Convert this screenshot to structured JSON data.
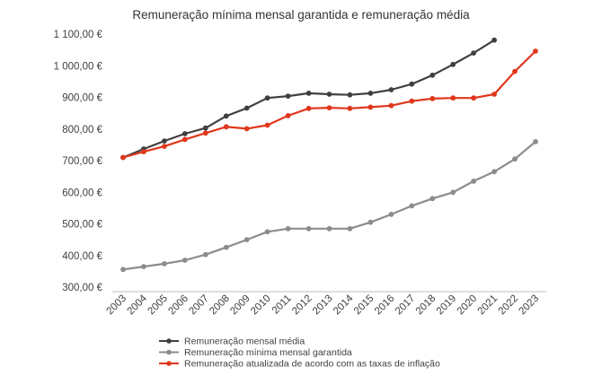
{
  "chart_data": {
    "type": "line",
    "title": "Remuneração mínima mensal garantida e remuneração média",
    "categories": [
      "2003",
      "2004",
      "2005",
      "2006",
      "2007",
      "2008",
      "2009",
      "2010",
      "2011",
      "2012",
      "2013",
      "2014",
      "2015",
      "2016",
      "2017",
      "2018",
      "2019",
      "2020",
      "2021",
      "2022",
      "2023"
    ],
    "ytick_labels": [
      "300,00 €",
      "400,00 €",
      "500,00 €",
      "600,00 €",
      "700,00 €",
      "800,00 €",
      "900,00 €",
      "1 000,00 €",
      "1 100,00 €"
    ],
    "ylim": [
      300,
      1100
    ],
    "grid": false,
    "legend_position": "bottom",
    "series": [
      {
        "name": "Remuneração mensal média",
        "color": "#404040",
        "values": [
          710,
          737,
          762,
          785,
          803,
          841,
          866,
          898,
          904,
          913,
          910,
          908,
          913,
          924,
          942,
          970,
          1004,
          1040,
          1081,
          null,
          null
        ]
      },
      {
        "name": "Remuneração mínima mensal garantida",
        "color": "#8c8c8c",
        "values": [
          356,
          365,
          374,
          385,
          403,
          426,
          450,
          475,
          485,
          485,
          485,
          485,
          505,
          530,
          557,
          580,
          600,
          635,
          665,
          705,
          760
        ]
      },
      {
        "name": "Remuneração atualizada de acordo com as taxas de inflação",
        "color": "#e0371c",
        "values": [
          710,
          728,
          745,
          767,
          787,
          807,
          801,
          812,
          842,
          865,
          867,
          865,
          869,
          874,
          888,
          896,
          898,
          898,
          910,
          982,
          1046
        ]
      }
    ]
  }
}
